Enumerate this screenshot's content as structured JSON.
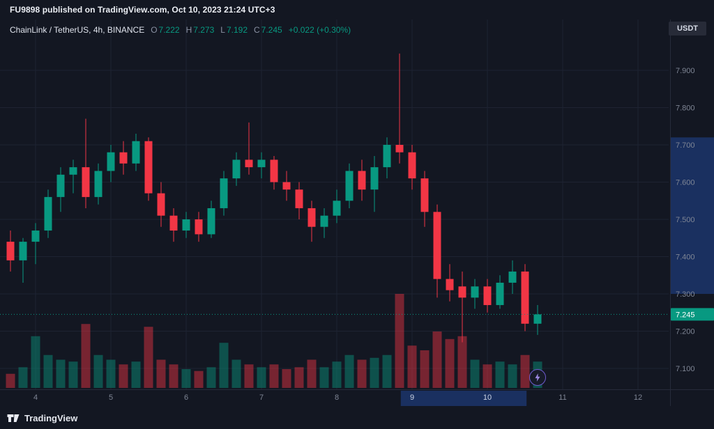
{
  "attribution": {
    "text": "FU9898 published on TradingView.com, Oct 10, 2023 21:24 UTC+3"
  },
  "header": {
    "title": "ChainLink / TetherUS, 4h, BINANCE",
    "o_label": "O",
    "o_value": "7.222",
    "h_label": "H",
    "h_value": "7.273",
    "l_label": "L",
    "l_value": "7.192",
    "c_label": "C",
    "c_value": "7.245",
    "change": "+0.022 (+0.30%)",
    "currency": "USDT"
  },
  "footer": {
    "brand": "TradingView",
    "logo_icon": "tradingview-logo"
  },
  "buttons": {
    "lightning_icon": "lightning-bolt"
  },
  "chart_data": {
    "type": "candlestick",
    "title": "ChainLink / TetherUS",
    "interval": "4h",
    "exchange": "BINANCE",
    "quote_currency": "USDT",
    "ohlc": {
      "open": 7.222,
      "high": 7.273,
      "low": 7.192,
      "close": 7.245,
      "change": "+0.022",
      "change_pct": "+0.30%"
    },
    "colors": {
      "up": "#089981",
      "down": "#f23645",
      "volume_up": "rgba(8,153,129,0.45)",
      "volume_down": "rgba(242,54,69,0.45)",
      "grid": "#1e2332",
      "axis_border": "#262b3a",
      "axis_text": "#7e8594",
      "axis_text_bright": "#cdd5e6",
      "axis_highlight": "#1a3060",
      "current_line": "#089981",
      "price_label_bg": "#089981",
      "price_label_text": "#ffffff"
    },
    "y_axis": {
      "ticks": [
        7.9,
        7.8,
        7.7,
        7.6,
        7.5,
        7.4,
        7.3,
        7.2,
        7.1
      ],
      "current_price": 7.245,
      "current_price_label": "7.245",
      "highlight_price_range": [
        7.3,
        7.72
      ]
    },
    "x_axis": {
      "ticks": [
        {
          "label": "4",
          "highlighted": false
        },
        {
          "label": "5",
          "highlighted": false
        },
        {
          "label": "6",
          "highlighted": false
        },
        {
          "label": "7",
          "highlighted": false
        },
        {
          "label": "8",
          "highlighted": false
        },
        {
          "label": "9",
          "highlighted": true
        },
        {
          "label": "10",
          "highlighted": true
        },
        {
          "label": "11",
          "highlighted": false
        },
        {
          "label": "12",
          "highlighted": false
        }
      ],
      "highlight_day_range": [
        8.85,
        10.52
      ]
    },
    "candles_format": [
      "open",
      "high",
      "low",
      "close",
      "volume_rel"
    ],
    "candles": [
      [
        7.44,
        7.47,
        7.36,
        7.39,
        0.15
      ],
      [
        7.39,
        7.45,
        7.33,
        7.44,
        0.22
      ],
      [
        7.44,
        7.49,
        7.38,
        7.47,
        0.55
      ],
      [
        7.47,
        7.58,
        7.45,
        7.56,
        0.35
      ],
      [
        7.56,
        7.64,
        7.52,
        7.62,
        0.3
      ],
      [
        7.62,
        7.66,
        7.57,
        7.64,
        0.28
      ],
      [
        7.64,
        7.77,
        7.53,
        7.56,
        0.68
      ],
      [
        7.56,
        7.65,
        7.54,
        7.63,
        0.35
      ],
      [
        7.63,
        7.7,
        7.6,
        7.68,
        0.3
      ],
      [
        7.68,
        7.71,
        7.62,
        7.65,
        0.25
      ],
      [
        7.65,
        7.73,
        7.63,
        7.71,
        0.28
      ],
      [
        7.71,
        7.72,
        7.55,
        7.57,
        0.65
      ],
      [
        7.57,
        7.6,
        7.48,
        7.51,
        0.3
      ],
      [
        7.51,
        7.53,
        7.44,
        7.47,
        0.25
      ],
      [
        7.47,
        7.52,
        7.45,
        7.5,
        0.2
      ],
      [
        7.5,
        7.52,
        7.44,
        7.46,
        0.18
      ],
      [
        7.46,
        7.55,
        7.45,
        7.53,
        0.22
      ],
      [
        7.53,
        7.63,
        7.51,
        7.61,
        0.48
      ],
      [
        7.61,
        7.68,
        7.59,
        7.66,
        0.3
      ],
      [
        7.66,
        7.76,
        7.62,
        7.64,
        0.25
      ],
      [
        7.64,
        7.68,
        7.61,
        7.66,
        0.22
      ],
      [
        7.66,
        7.67,
        7.58,
        7.6,
        0.25
      ],
      [
        7.6,
        7.63,
        7.55,
        7.58,
        0.2
      ],
      [
        7.58,
        7.6,
        7.5,
        7.53,
        0.22
      ],
      [
        7.53,
        7.55,
        7.44,
        7.48,
        0.3
      ],
      [
        7.48,
        7.53,
        7.45,
        7.51,
        0.22
      ],
      [
        7.51,
        7.58,
        7.49,
        7.55,
        0.28
      ],
      [
        7.55,
        7.65,
        7.53,
        7.63,
        0.35
      ],
      [
        7.63,
        7.66,
        7.55,
        7.58,
        0.3
      ],
      [
        7.58,
        7.67,
        7.52,
        7.64,
        0.32
      ],
      [
        7.64,
        7.72,
        7.61,
        7.7,
        0.35
      ],
      [
        7.7,
        7.945,
        7.65,
        7.68,
        1.0
      ],
      [
        7.68,
        7.7,
        7.58,
        7.61,
        0.45
      ],
      [
        7.61,
        7.63,
        7.48,
        7.52,
        0.4
      ],
      [
        7.52,
        7.54,
        7.29,
        7.34,
        0.6
      ],
      [
        7.34,
        7.38,
        7.28,
        7.31,
        0.52
      ],
      [
        7.32,
        7.36,
        7.17,
        7.29,
        0.55
      ],
      [
        7.29,
        7.34,
        7.26,
        7.32,
        0.3
      ],
      [
        7.32,
        7.34,
        7.25,
        7.27,
        0.25
      ],
      [
        7.27,
        7.35,
        7.26,
        7.33,
        0.28
      ],
      [
        7.33,
        7.39,
        7.3,
        7.36,
        0.25
      ],
      [
        7.36,
        7.38,
        7.2,
        7.22,
        0.35
      ],
      [
        7.22,
        7.27,
        7.19,
        7.245,
        0.28
      ]
    ]
  }
}
